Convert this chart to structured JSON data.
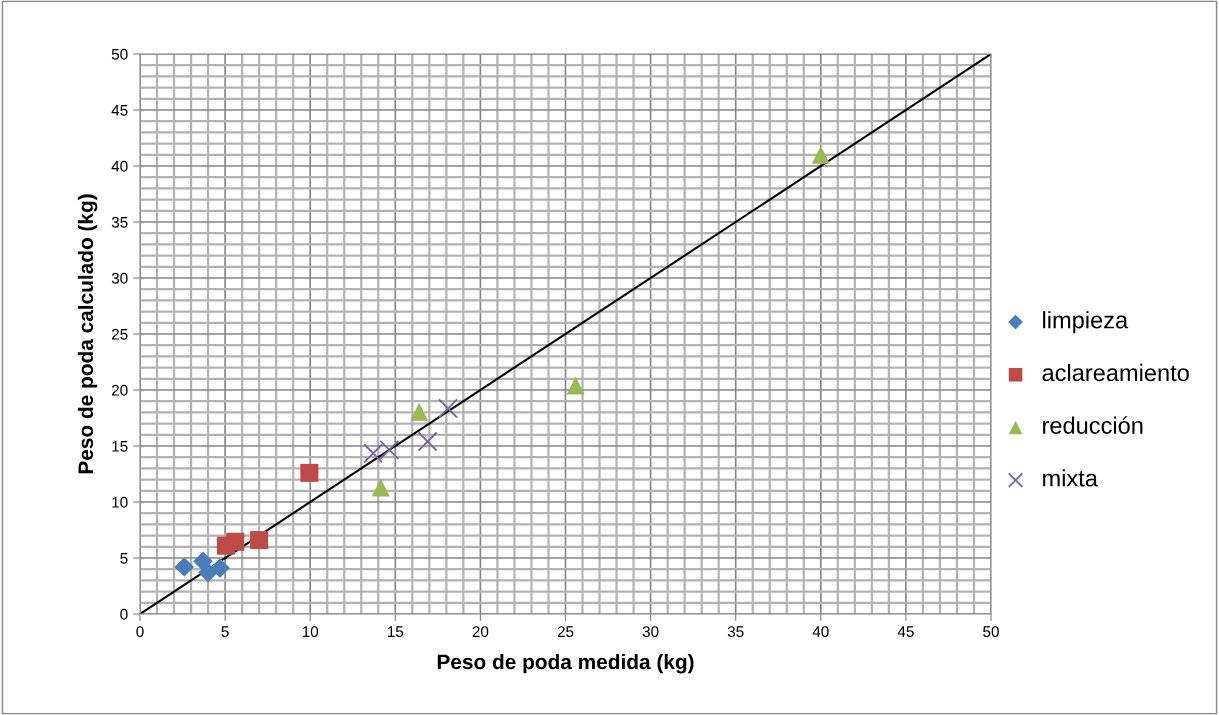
{
  "chart_data": {
    "type": "scatter",
    "xlabel": "Peso de poda medida (kg)",
    "ylabel": "Peso de poda calculado (kg)",
    "xlim": [
      0,
      50
    ],
    "ylim": [
      0,
      50
    ],
    "xticks": [
      0,
      5,
      10,
      15,
      20,
      25,
      30,
      35,
      40,
      45,
      50
    ],
    "yticks": [
      0,
      5,
      10,
      15,
      20,
      25,
      30,
      35,
      40,
      45,
      50
    ],
    "grid": true,
    "legend": "right",
    "series": [
      {
        "name": "limpieza",
        "color": "#4a7ebb",
        "marker": "diamond",
        "x": [
          2.6,
          3.7,
          4.0,
          4.7
        ],
        "values": [
          4.2,
          4.7,
          3.7,
          4.1
        ]
      },
      {
        "name": "aclareamiento",
        "color": "#be4b48",
        "marker": "square",
        "x": [
          5.05,
          5.6,
          7.0,
          9.95
        ],
        "values": [
          6.1,
          6.45,
          6.6,
          12.6
        ]
      },
      {
        "name": "reducción",
        "color": "#98b954",
        "marker": "triangle",
        "x": [
          14.15,
          16.4,
          25.6,
          40.0
        ],
        "values": [
          11.3,
          18.05,
          20.4,
          41.0
        ]
      },
      {
        "name": "mixta",
        "color": "#7d60a0",
        "marker": "cross",
        "x": [
          13.7,
          14.65,
          16.9,
          18.1
        ],
        "values": [
          14.35,
          14.65,
          15.4,
          18.35
        ]
      },
      {
        "type": "line",
        "color": "#000000",
        "marker": "none",
        "x": [
          0,
          50
        ],
        "values": [
          0,
          50
        ]
      }
    ]
  }
}
